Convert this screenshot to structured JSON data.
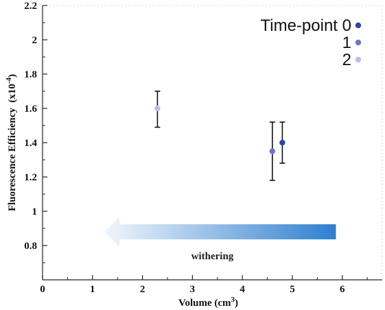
{
  "chart_data": {
    "type": "scatter",
    "xlabel": "Volume (cm",
    "xlabel_sup": "3",
    "xlabel_end": ")",
    "ylabel": "Fluorescence Efficiency  (x10",
    "ylabel_sup": "-4",
    "ylabel_end": ")",
    "xlim": [
      0,
      6.8
    ],
    "ylim": [
      0.6,
      2.2
    ],
    "x_ticks": [
      0,
      1,
      2,
      3,
      4,
      5,
      6
    ],
    "x_tick_labels": [
      "0",
      "1",
      "2",
      "3",
      "4",
      "5",
      "6"
    ],
    "y_ticks": [
      0.8,
      1.0,
      1.2,
      1.4,
      1.6,
      1.8,
      2.0,
      2.2
    ],
    "y_tick_labels": [
      "0.8",
      "1",
      "1.2",
      "1.4",
      "1.6",
      "1.8",
      "2",
      "2.2"
    ],
    "grid": false,
    "legend_position": "top-right",
    "series": [
      {
        "name": "Time-point 0",
        "color": "#2e45a8",
        "points": [
          {
            "x": 4.8,
            "y": 1.4,
            "err_low": 1.28,
            "err_high": 1.52
          }
        ]
      },
      {
        "name": "1",
        "color": "#6b77c4",
        "points": [
          {
            "x": 4.6,
            "y": 1.35,
            "err_low": 1.18,
            "err_high": 1.52
          }
        ]
      },
      {
        "name": "2",
        "color": "#b9bfe4",
        "points": [
          {
            "x": 2.3,
            "y": 1.6,
            "err_low": 1.49,
            "err_high": 1.7
          }
        ]
      }
    ],
    "annotation": {
      "text": "withering",
      "arrow_from_x": 5.9,
      "arrow_to_x": 1.1,
      "arrow_y": 0.88,
      "arrow_color_start": "#2f7fd0",
      "arrow_color_end": "#f2f6fc"
    }
  }
}
